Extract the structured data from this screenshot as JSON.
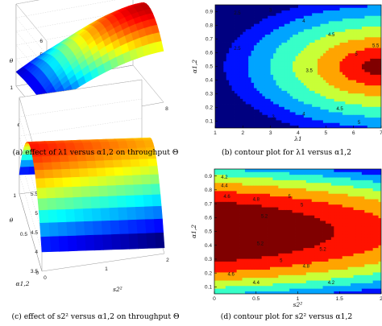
{
  "chart_data": [
    {
      "type": "surface",
      "id": "a",
      "caption": "(a) effect of λ1 versus α1,2 on throughput Θ",
      "zlabel": "θ",
      "xlabel": "λ1",
      "ylabel": "α1,2",
      "x_ticks": [
        "0",
        "2",
        "4",
        "6",
        "8"
      ],
      "y_ticks": [
        "0",
        "0.5",
        "1"
      ],
      "z_ticks": [
        "0",
        "1",
        "2",
        "3",
        "4",
        "5",
        "6"
      ],
      "zlim": [
        0,
        6
      ],
      "colormap": "jet",
      "grid": true
    },
    {
      "type": "contour",
      "id": "b",
      "caption": "(b) contour plot for λ1 versus α1,2",
      "xlabel": "λ1",
      "ylabel": "α1,2",
      "x_ticks": [
        "1",
        "2",
        "3",
        "4",
        "5",
        "6",
        "7"
      ],
      "y_ticks": [
        "0.1",
        "0.2",
        "0.3",
        "0.4",
        "0.5",
        "0.6",
        "0.7",
        "0.8",
        "0.9"
      ],
      "xlim": [
        1,
        7
      ],
      "ylim": [
        0.05,
        0.95
      ],
      "levels": [
        2.5,
        3,
        3.5,
        4,
        4.5,
        5,
        5.5
      ],
      "level_labels": [
        "2.5",
        "3",
        "3.5",
        "4",
        "4.5",
        "5",
        "5.5"
      ],
      "peak": {
        "x": 7,
        "y": 0.5
      },
      "colormap": "jet"
    },
    {
      "type": "surface",
      "id": "c",
      "caption": "(c) effect of s2² versus α1,2 on throughput Θ",
      "zlabel": "θ",
      "xlabel": "s2²",
      "ylabel": "α1,2",
      "x_ticks": [
        "0",
        "1",
        "2"
      ],
      "y_ticks": [
        "0",
        "0.5",
        "1"
      ],
      "z_ticks": [
        "3.5",
        "4",
        "4.5",
        "5",
        "5.5",
        "6"
      ],
      "zlim": [
        3.5,
        6
      ],
      "colormap": "jet",
      "grid": true
    },
    {
      "type": "contour",
      "id": "d",
      "caption": "(d) contour plot for s2² versus α1,2",
      "xlabel": "s2²",
      "ylabel": "α1,2",
      "x_ticks": [
        "0",
        "0.5",
        "1",
        "1.5",
        "2"
      ],
      "y_ticks": [
        "0.1",
        "0.2",
        "0.3",
        "0.4",
        "0.5",
        "0.6",
        "0.7",
        "0.8",
        "0.9"
      ],
      "xlim": [
        0,
        2
      ],
      "ylim": [
        0.05,
        0.95
      ],
      "levels": [
        4.2,
        4.4,
        4.6,
        4.8,
        5,
        5.2,
        5.4
      ],
      "level_labels": [
        "4.2",
        "4.4",
        "4.6",
        "4.8",
        "5",
        "5.2",
        "5.4"
      ],
      "peak": {
        "x": 0,
        "y": 0.5
      },
      "colormap": "jet"
    }
  ]
}
